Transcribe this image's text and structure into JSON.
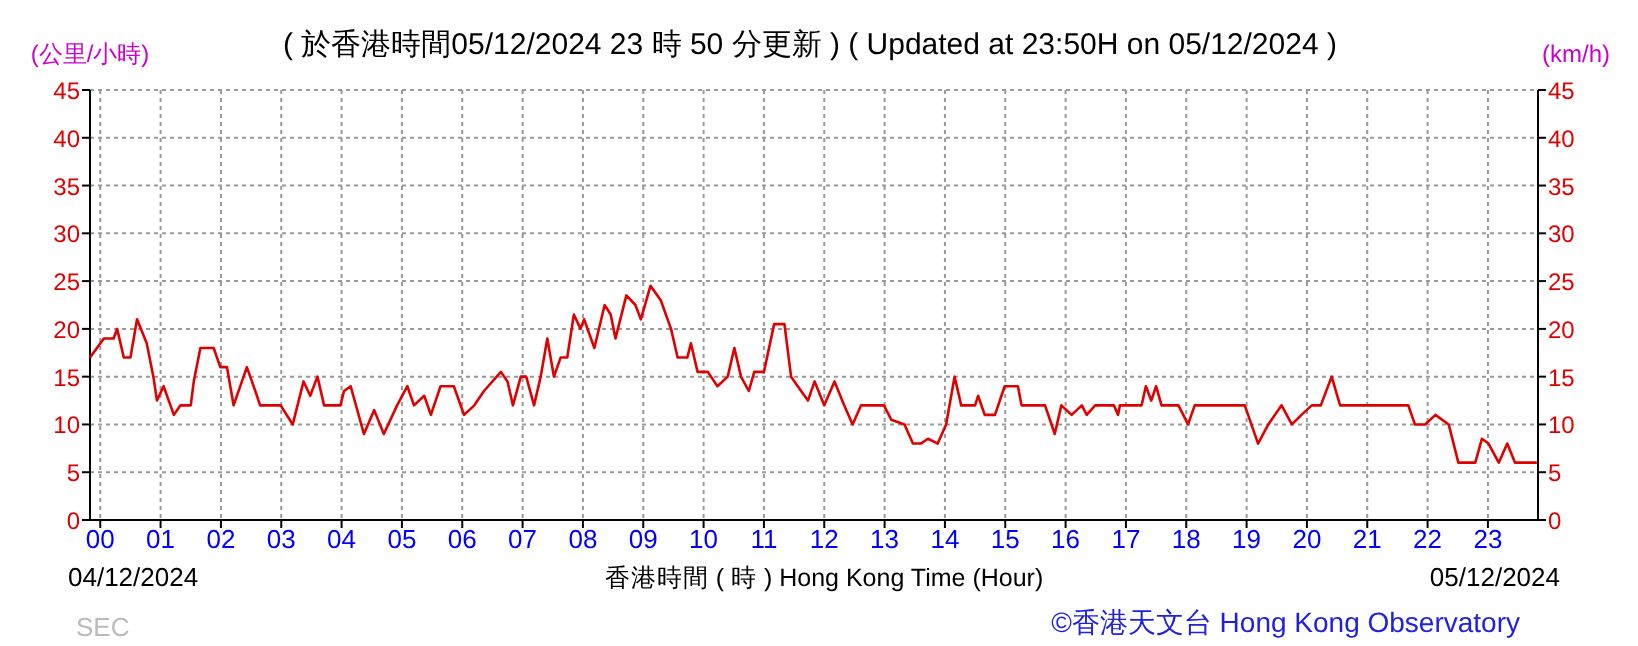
{
  "chart_data": {
    "type": "line",
    "title": "( 於香港時間05/12/2024 23 時 50 分更新 ) ( Updated at 23:50H on 05/12/2024 )",
    "ylabel": "(公里/小時)",
    "y2label": "(km/h)",
    "xlabel": "香港時間 ( 時 ) Hong Kong Time (Hour)",
    "annotations": [
      "04/12/2024",
      "05/12/2024",
      "SEC",
      "©香港天文台 Hong Kong Observatory"
    ],
    "xlim": [
      -0.17,
      23.83
    ],
    "xticks": [
      {
        "value": 0,
        "label": "00"
      },
      {
        "value": 1,
        "label": "01"
      },
      {
        "value": 2,
        "label": "02"
      },
      {
        "value": 3,
        "label": "03"
      },
      {
        "value": 4,
        "label": "04"
      },
      {
        "value": 5,
        "label": "05"
      },
      {
        "value": 6,
        "label": "06"
      },
      {
        "value": 7,
        "label": "07"
      },
      {
        "value": 8,
        "label": "08"
      },
      {
        "value": 9,
        "label": "09"
      },
      {
        "value": 10,
        "label": "10"
      },
      {
        "value": 11,
        "label": "11"
      },
      {
        "value": 12,
        "label": "12"
      },
      {
        "value": 13,
        "label": "13"
      },
      {
        "value": 14,
        "label": "14"
      },
      {
        "value": 15,
        "label": "15"
      },
      {
        "value": 16,
        "label": "16"
      },
      {
        "value": 17,
        "label": "17"
      },
      {
        "value": 18,
        "label": "18"
      },
      {
        "value": 19,
        "label": "19"
      },
      {
        "value": 20,
        "label": "20"
      },
      {
        "value": 21,
        "label": "21"
      },
      {
        "value": 22,
        "label": "22"
      },
      {
        "value": 23,
        "label": "23"
      }
    ],
    "ylim": [
      0,
      45
    ],
    "yticks": [
      0,
      5,
      10,
      15,
      20,
      25,
      30,
      35,
      40,
      45
    ],
    "y2lim": [
      0,
      45
    ],
    "y2ticks": [
      0,
      5,
      10,
      15,
      20,
      25,
      30,
      35,
      40,
      45
    ],
    "grid": true,
    "marker": "none",
    "line_style": "solid",
    "series": [
      {
        "color": "#e00000",
        "x": [
          -0.17,
          0.06,
          0.22,
          0.28,
          0.39,
          0.5,
          0.61,
          0.77,
          0.88,
          0.94,
          1.05,
          1.22,
          1.33,
          1.5,
          1.55,
          1.66,
          1.88,
          1.99,
          2.1,
          2.21,
          2.43,
          2.57,
          2.65,
          2.99,
          3.19,
          3.37,
          3.48,
          3.6,
          3.71,
          3.98,
          4.04,
          4.15,
          4.37,
          4.54,
          4.7,
          4.92,
          5.09,
          5.2,
          5.37,
          5.48,
          5.64,
          5.86,
          6.03,
          6.2,
          6.36,
          6.64,
          6.75,
          6.84,
          6.97,
          7.06,
          7.19,
          7.3,
          7.41,
          7.52,
          7.63,
          7.74,
          7.85,
          7.96,
          8.02,
          8.19,
          8.36,
          8.46,
          8.54,
          8.72,
          8.87,
          8.96,
          9.12,
          9.29,
          9.46,
          9.57,
          9.73,
          9.79,
          9.9,
          10.07,
          10.23,
          10.4,
          10.51,
          10.62,
          10.75,
          10.84,
          11.0,
          11.17,
          11.34,
          11.45,
          11.56,
          11.73,
          11.84,
          12.0,
          12.17,
          12.33,
          12.47,
          12.61,
          12.99,
          13.11,
          13.33,
          13.47,
          13.6,
          13.72,
          13.88,
          14.02,
          14.16,
          14.27,
          14.5,
          14.55,
          14.66,
          14.83,
          14.99,
          15.21,
          15.27,
          15.66,
          15.82,
          15.93,
          16.1,
          16.27,
          16.35,
          16.49,
          16.8,
          16.87,
          16.9,
          17.26,
          17.33,
          17.42,
          17.5,
          17.59,
          17.87,
          18.03,
          18.14,
          18.97,
          19.19,
          19.36,
          19.58,
          19.75,
          19.91,
          20.08,
          20.23,
          20.41,
          20.55,
          21.68,
          21.79,
          21.96,
          22.13,
          22.35,
          22.51,
          22.79,
          22.9,
          23.01,
          23.18,
          23.32,
          23.45,
          23.81
        ],
        "values": [
          17,
          19,
          19,
          20,
          17,
          17,
          21,
          18.5,
          15,
          12.5,
          14,
          11,
          12,
          12,
          14.5,
          18,
          18,
          16,
          16,
          12,
          16,
          13.5,
          12,
          12,
          10,
          14.5,
          13,
          15,
          12,
          12,
          13.5,
          14,
          9,
          11.5,
          9,
          12,
          14,
          12,
          13,
          11,
          14,
          14,
          11,
          12,
          13.5,
          15.5,
          14.5,
          12,
          15,
          15,
          12,
          15,
          19,
          15,
          17,
          17,
          21.5,
          20,
          21,
          18,
          22.5,
          21.5,
          19,
          23.5,
          22.5,
          21,
          24.5,
          23,
          20,
          17,
          17,
          18.5,
          15.5,
          15.5,
          14,
          15,
          18,
          15,
          13.5,
          15.5,
          15.5,
          20.5,
          20.5,
          15,
          14,
          12.5,
          14.5,
          12,
          14.5,
          12,
          10,
          12,
          12,
          10.5,
          10,
          8,
          8,
          8.5,
          8,
          10,
          15,
          12,
          12,
          13,
          11,
          11,
          14,
          14,
          12,
          12,
          9,
          12,
          11,
          12,
          11,
          12,
          12,
          11,
          12,
          12,
          14,
          12.5,
          14,
          12,
          12,
          10,
          12,
          12,
          8,
          10,
          12,
          10,
          11,
          12,
          12,
          15,
          12,
          12,
          10,
          10,
          11,
          10,
          6,
          6,
          8.5,
          8,
          6,
          8,
          6,
          6
        ]
      }
    ]
  }
}
